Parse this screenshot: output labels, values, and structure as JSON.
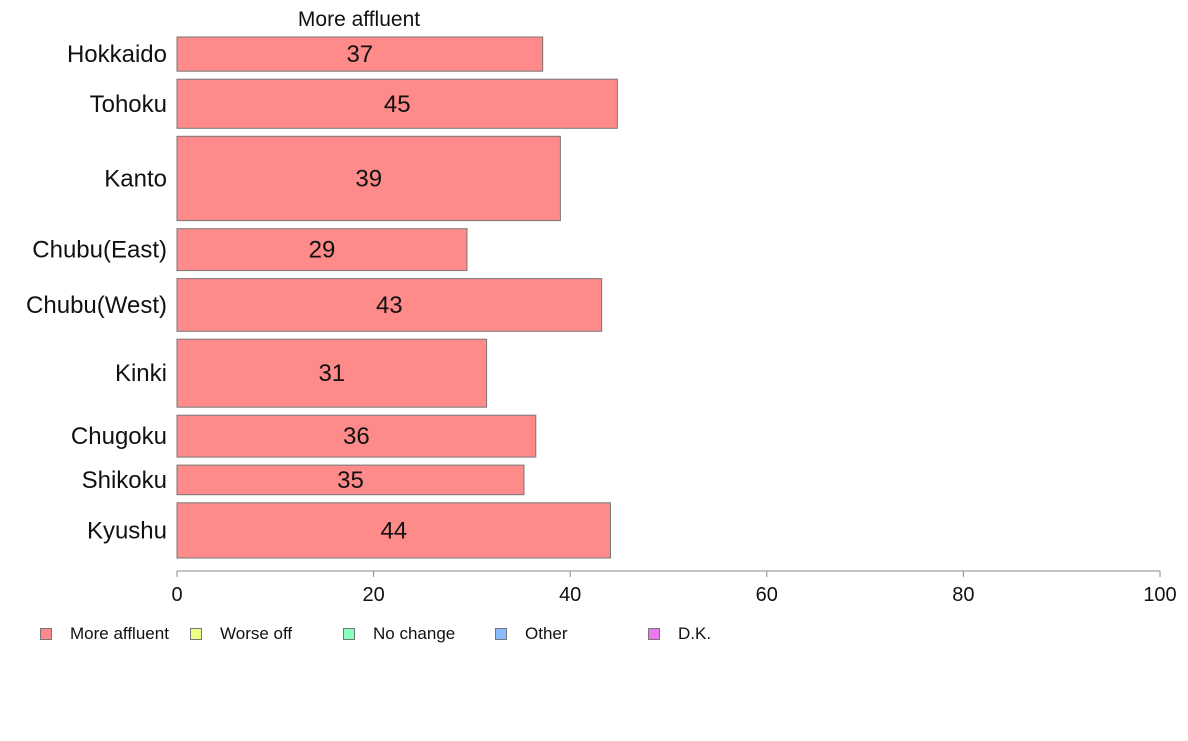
{
  "chart_data": {
    "type": "bar",
    "orientation": "horizontal",
    "title": "More affluent",
    "categories": [
      "Hokkaido",
      "Tohoku",
      "Kanto",
      "Chubu(East)",
      "Chubu(West)",
      "Kinki",
      "Chugoku",
      "Shikoku",
      "Kyushu"
    ],
    "category_weights": [
      0.67,
      0.96,
      1.65,
      0.82,
      1.03,
      1.33,
      0.82,
      0.58,
      1.08
    ],
    "series": [
      {
        "name": "More affluent",
        "color": "#ff8a8a",
        "values": [
          37.2,
          44.8,
          39.0,
          29.5,
          43.2,
          31.5,
          36.5,
          35.3,
          44.1
        ],
        "labels": [
          "37",
          "45",
          "39",
          "29",
          "43",
          "31",
          "36",
          "35",
          "44"
        ]
      }
    ],
    "xlim": [
      0,
      100
    ],
    "xticks": [
      0,
      20,
      40,
      60,
      80,
      100
    ],
    "xtick_labels": [
      "0",
      "20",
      "40",
      "60",
      "80",
      "100"
    ],
    "grid": false,
    "legend": {
      "position": "bottom-left",
      "entries": [
        {
          "label": "More affluent",
          "color": "#ff8a8a"
        },
        {
          "label": "Worse off",
          "color": "#eeff88"
        },
        {
          "label": "No change",
          "color": "#88ffbb"
        },
        {
          "label": "Other",
          "color": "#88bbff"
        },
        {
          "label": "D.K.",
          "color": "#ee77ee"
        }
      ]
    }
  }
}
